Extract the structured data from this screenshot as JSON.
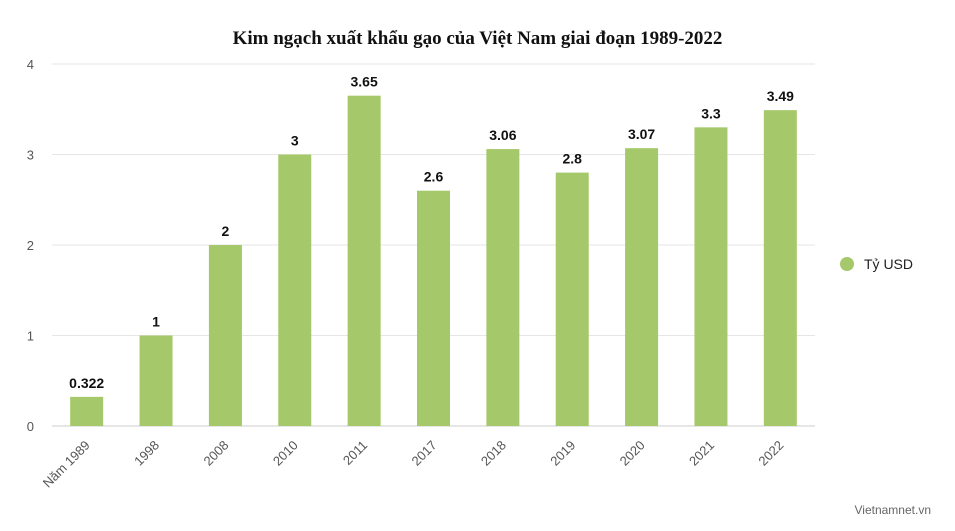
{
  "chart_data": {
    "type": "bar",
    "title": "Kim ngạch xuất khẩu gạo của Việt Nam giai đoạn 1989-2022",
    "categories": [
      "Năm 1989",
      "1998",
      "2008",
      "2010",
      "2011",
      "2017",
      "2018",
      "2019",
      "2020",
      "2021",
      "2022"
    ],
    "series": [
      {
        "name": "Tỷ USD",
        "values": [
          0.322,
          1,
          2,
          3,
          3.65,
          2.6,
          3.06,
          2.8,
          3.07,
          3.3,
          3.49
        ],
        "labels": [
          "0.322",
          "1",
          "2",
          "3",
          "3.65",
          "2.6",
          "3.06",
          "2.8",
          "3.07",
          "3.3",
          "3.49"
        ]
      }
    ],
    "ylim": [
      0,
      4
    ],
    "yticks": [
      "0",
      "1",
      "2",
      "3",
      "4"
    ],
    "grid": true,
    "legend_position": "right",
    "bar_color": "#a5c96a",
    "grid_color": "#e6e6e6"
  },
  "credit": "Vietnamnet.vn"
}
